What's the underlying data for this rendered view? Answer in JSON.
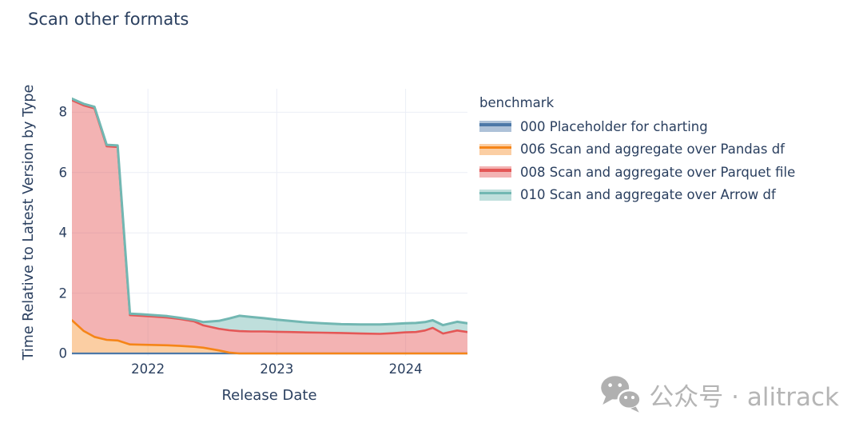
{
  "title": "Scan other formats",
  "axes": {
    "x_title": "Release Date",
    "y_title": "Time Relative to Latest Version by Type"
  },
  "legend": {
    "title": "benchmark",
    "items": [
      "000 Placeholder for charting",
      "006 Scan and aggregate over Pandas df",
      "008 Scan and aggregate over Parquet file",
      "010 Scan and aggregate over Arrow df"
    ]
  },
  "watermark": {
    "text": "公众号 · alitrack",
    "icon": "wechat-icon"
  },
  "colors": {
    "text": "#2a3f5f",
    "grid": "#ebeef6",
    "watermark_gray": "#b5b5b5",
    "series_blue": "#4C78A8",
    "series_orange": "#F58518",
    "series_red": "#E45756",
    "series_teal": "#72B7B2"
  },
  "chart_data": {
    "type": "area",
    "title": "Scan other formats",
    "xlabel": "Release Date",
    "ylabel": "Time Relative to Latest Version by Type",
    "legend_title": "benchmark",
    "legend_position": "right",
    "grid": true,
    "fill": "tonexty",
    "xlim": [
      2021.41,
      2024.48
    ],
    "ylim": [
      0,
      8.78
    ],
    "xticks": [
      2022,
      2023,
      2024
    ],
    "yticks": [
      0,
      2,
      4,
      6,
      8
    ],
    "x": [
      2021.41,
      2021.5,
      2021.585,
      2021.68,
      2021.765,
      2021.86,
      2021.95,
      2022.05,
      2022.15,
      2022.25,
      2022.36,
      2022.43,
      2022.55,
      2022.63,
      2022.71,
      2022.8,
      2022.9,
      2023.0,
      2023.1,
      2023.2,
      2023.35,
      2023.5,
      2023.65,
      2023.8,
      2023.9,
      2024.0,
      2024.08,
      2024.15,
      2024.21,
      2024.29,
      2024.4,
      2024.48
    ],
    "series": [
      {
        "name": "000 Placeholder for charting",
        "color": "#4C78A8",
        "fill_opacity": 0.45,
        "line_width": 2.2,
        "values": [
          0,
          0,
          0,
          0,
          0,
          0,
          0,
          0,
          0,
          0,
          0,
          0,
          0,
          0,
          0,
          0,
          0,
          0,
          0,
          0,
          0,
          0,
          0,
          0,
          0,
          0,
          0,
          0,
          0,
          0,
          0,
          0
        ]
      },
      {
        "name": "006 Scan and aggregate over Pandas df",
        "color": "#F58518",
        "fill_opacity": 0.4,
        "line_width": 2.6,
        "values": [
          1.1,
          0.75,
          0.55,
          0.45,
          0.43,
          0.3,
          0.29,
          0.28,
          0.27,
          0.25,
          0.22,
          0.19,
          0.1,
          0.03,
          0,
          0,
          0,
          0,
          0,
          0,
          0,
          0,
          0,
          0,
          0,
          0,
          0,
          0,
          0,
          0,
          0,
          0
        ]
      },
      {
        "name": "008 Scan and aggregate over Parquet file",
        "color": "#E45756",
        "fill_opacity": 0.45,
        "line_width": 2.6,
        "values": [
          8.4,
          8.23,
          8.13,
          6.87,
          6.85,
          1.27,
          1.25,
          1.22,
          1.19,
          1.14,
          1.06,
          0.93,
          0.82,
          0.77,
          0.74,
          0.73,
          0.73,
          0.72,
          0.71,
          0.7,
          0.69,
          0.68,
          0.66,
          0.65,
          0.67,
          0.7,
          0.71,
          0.76,
          0.85,
          0.66,
          0.76,
          0.71
        ]
      },
      {
        "name": "010 Scan and aggregate over Arrow df",
        "color": "#72B7B2",
        "fill_opacity": 0.45,
        "line_width": 3.0,
        "values": [
          8.45,
          8.28,
          8.18,
          6.92,
          6.9,
          1.32,
          1.3,
          1.27,
          1.24,
          1.18,
          1.11,
          1.04,
          1.08,
          1.16,
          1.25,
          1.21,
          1.17,
          1.12,
          1.08,
          1.04,
          1.0,
          0.97,
          0.96,
          0.96,
          0.98,
          1.0,
          1.01,
          1.04,
          1.1,
          0.94,
          1.05,
          1.0
        ]
      }
    ]
  }
}
